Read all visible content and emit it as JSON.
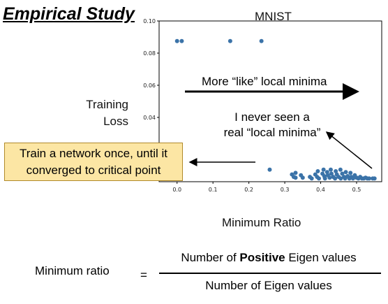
{
  "slide": {
    "title": "Empirical Study"
  },
  "chart_data": {
    "type": "scatter",
    "title": "MNIST",
    "ylabel_lines": [
      "Training",
      "Loss"
    ],
    "xlabel": "Minimum Ratio",
    "xlim": [
      -0.05,
      0.57
    ],
    "ylim": [
      0.0,
      0.1
    ],
    "xticks": [
      0.0,
      0.1,
      0.2,
      0.3,
      0.4,
      0.5
    ],
    "xtick_labels": [
      "0.0",
      "0.1",
      "0.2",
      "0.3",
      "0.4",
      "0.5"
    ],
    "yticks": [
      0.04,
      0.06,
      0.08,
      0.1
    ],
    "ytick_labels": [
      "0.04",
      "0.06",
      "0.08",
      "0.10"
    ],
    "grid": false,
    "point_color": "#3b73a8",
    "points": [
      {
        "x": 0.0,
        "y": 0.0875
      },
      {
        "x": 0.013,
        "y": 0.0875
      },
      {
        "x": 0.148,
        "y": 0.0875
      },
      {
        "x": 0.235,
        "y": 0.0875
      },
      {
        "x": 0.258,
        "y": 0.0075
      },
      {
        "x": 0.32,
        "y": 0.0045
      },
      {
        "x": 0.325,
        "y": 0.003
      },
      {
        "x": 0.33,
        "y": 0.0055
      },
      {
        "x": 0.33,
        "y": 0.0025
      },
      {
        "x": 0.345,
        "y": 0.004
      },
      {
        "x": 0.35,
        "y": 0.0025
      },
      {
        "x": 0.37,
        "y": 0.003
      },
      {
        "x": 0.375,
        "y": 0.002
      },
      {
        "x": 0.385,
        "y": 0.0045
      },
      {
        "x": 0.39,
        "y": 0.003
      },
      {
        "x": 0.392,
        "y": 0.0065
      },
      {
        "x": 0.395,
        "y": 0.002
      },
      {
        "x": 0.405,
        "y": 0.005
      },
      {
        "x": 0.408,
        "y": 0.0075
      },
      {
        "x": 0.41,
        "y": 0.0035
      },
      {
        "x": 0.412,
        "y": 0.002
      },
      {
        "x": 0.418,
        "y": 0.006
      },
      {
        "x": 0.42,
        "y": 0.004
      },
      {
        "x": 0.425,
        "y": 0.0025
      },
      {
        "x": 0.428,
        "y": 0.0075
      },
      {
        "x": 0.43,
        "y": 0.005
      },
      {
        "x": 0.435,
        "y": 0.003
      },
      {
        "x": 0.44,
        "y": 0.002
      },
      {
        "x": 0.442,
        "y": 0.0065
      },
      {
        "x": 0.445,
        "y": 0.0045
      },
      {
        "x": 0.45,
        "y": 0.003
      },
      {
        "x": 0.455,
        "y": 0.0075
      },
      {
        "x": 0.456,
        "y": 0.002
      },
      {
        "x": 0.46,
        "y": 0.005
      },
      {
        "x": 0.465,
        "y": 0.003
      },
      {
        "x": 0.468,
        "y": 0.002
      },
      {
        "x": 0.47,
        "y": 0.006
      },
      {
        "x": 0.475,
        "y": 0.0035
      },
      {
        "x": 0.48,
        "y": 0.002
      },
      {
        "x": 0.483,
        "y": 0.0055
      },
      {
        "x": 0.485,
        "y": 0.003
      },
      {
        "x": 0.49,
        "y": 0.002
      },
      {
        "x": 0.495,
        "y": 0.004
      },
      {
        "x": 0.5,
        "y": 0.0025
      },
      {
        "x": 0.505,
        "y": 0.002
      },
      {
        "x": 0.51,
        "y": 0.003
      },
      {
        "x": 0.515,
        "y": 0.002
      },
      {
        "x": 0.52,
        "y": 0.002
      },
      {
        "x": 0.525,
        "y": 0.0025
      },
      {
        "x": 0.53,
        "y": 0.002
      },
      {
        "x": 0.535,
        "y": 0.002
      },
      {
        "x": 0.545,
        "y": 0.002
      },
      {
        "x": 0.55,
        "y": 0.002
      }
    ]
  },
  "annotations": {
    "more_like_local_minima": "More “like” local minima",
    "never_seen": "I never seen a real “local minima”",
    "callout": "Train a network once, until it converged to critical point"
  },
  "formula": {
    "left": "Minimum ratio",
    "equals": "=",
    "numerator_before": "Number of ",
    "numerator_bold": "Positive",
    "numerator_after": " Eigen values",
    "denominator": "Number of Eigen values"
  }
}
